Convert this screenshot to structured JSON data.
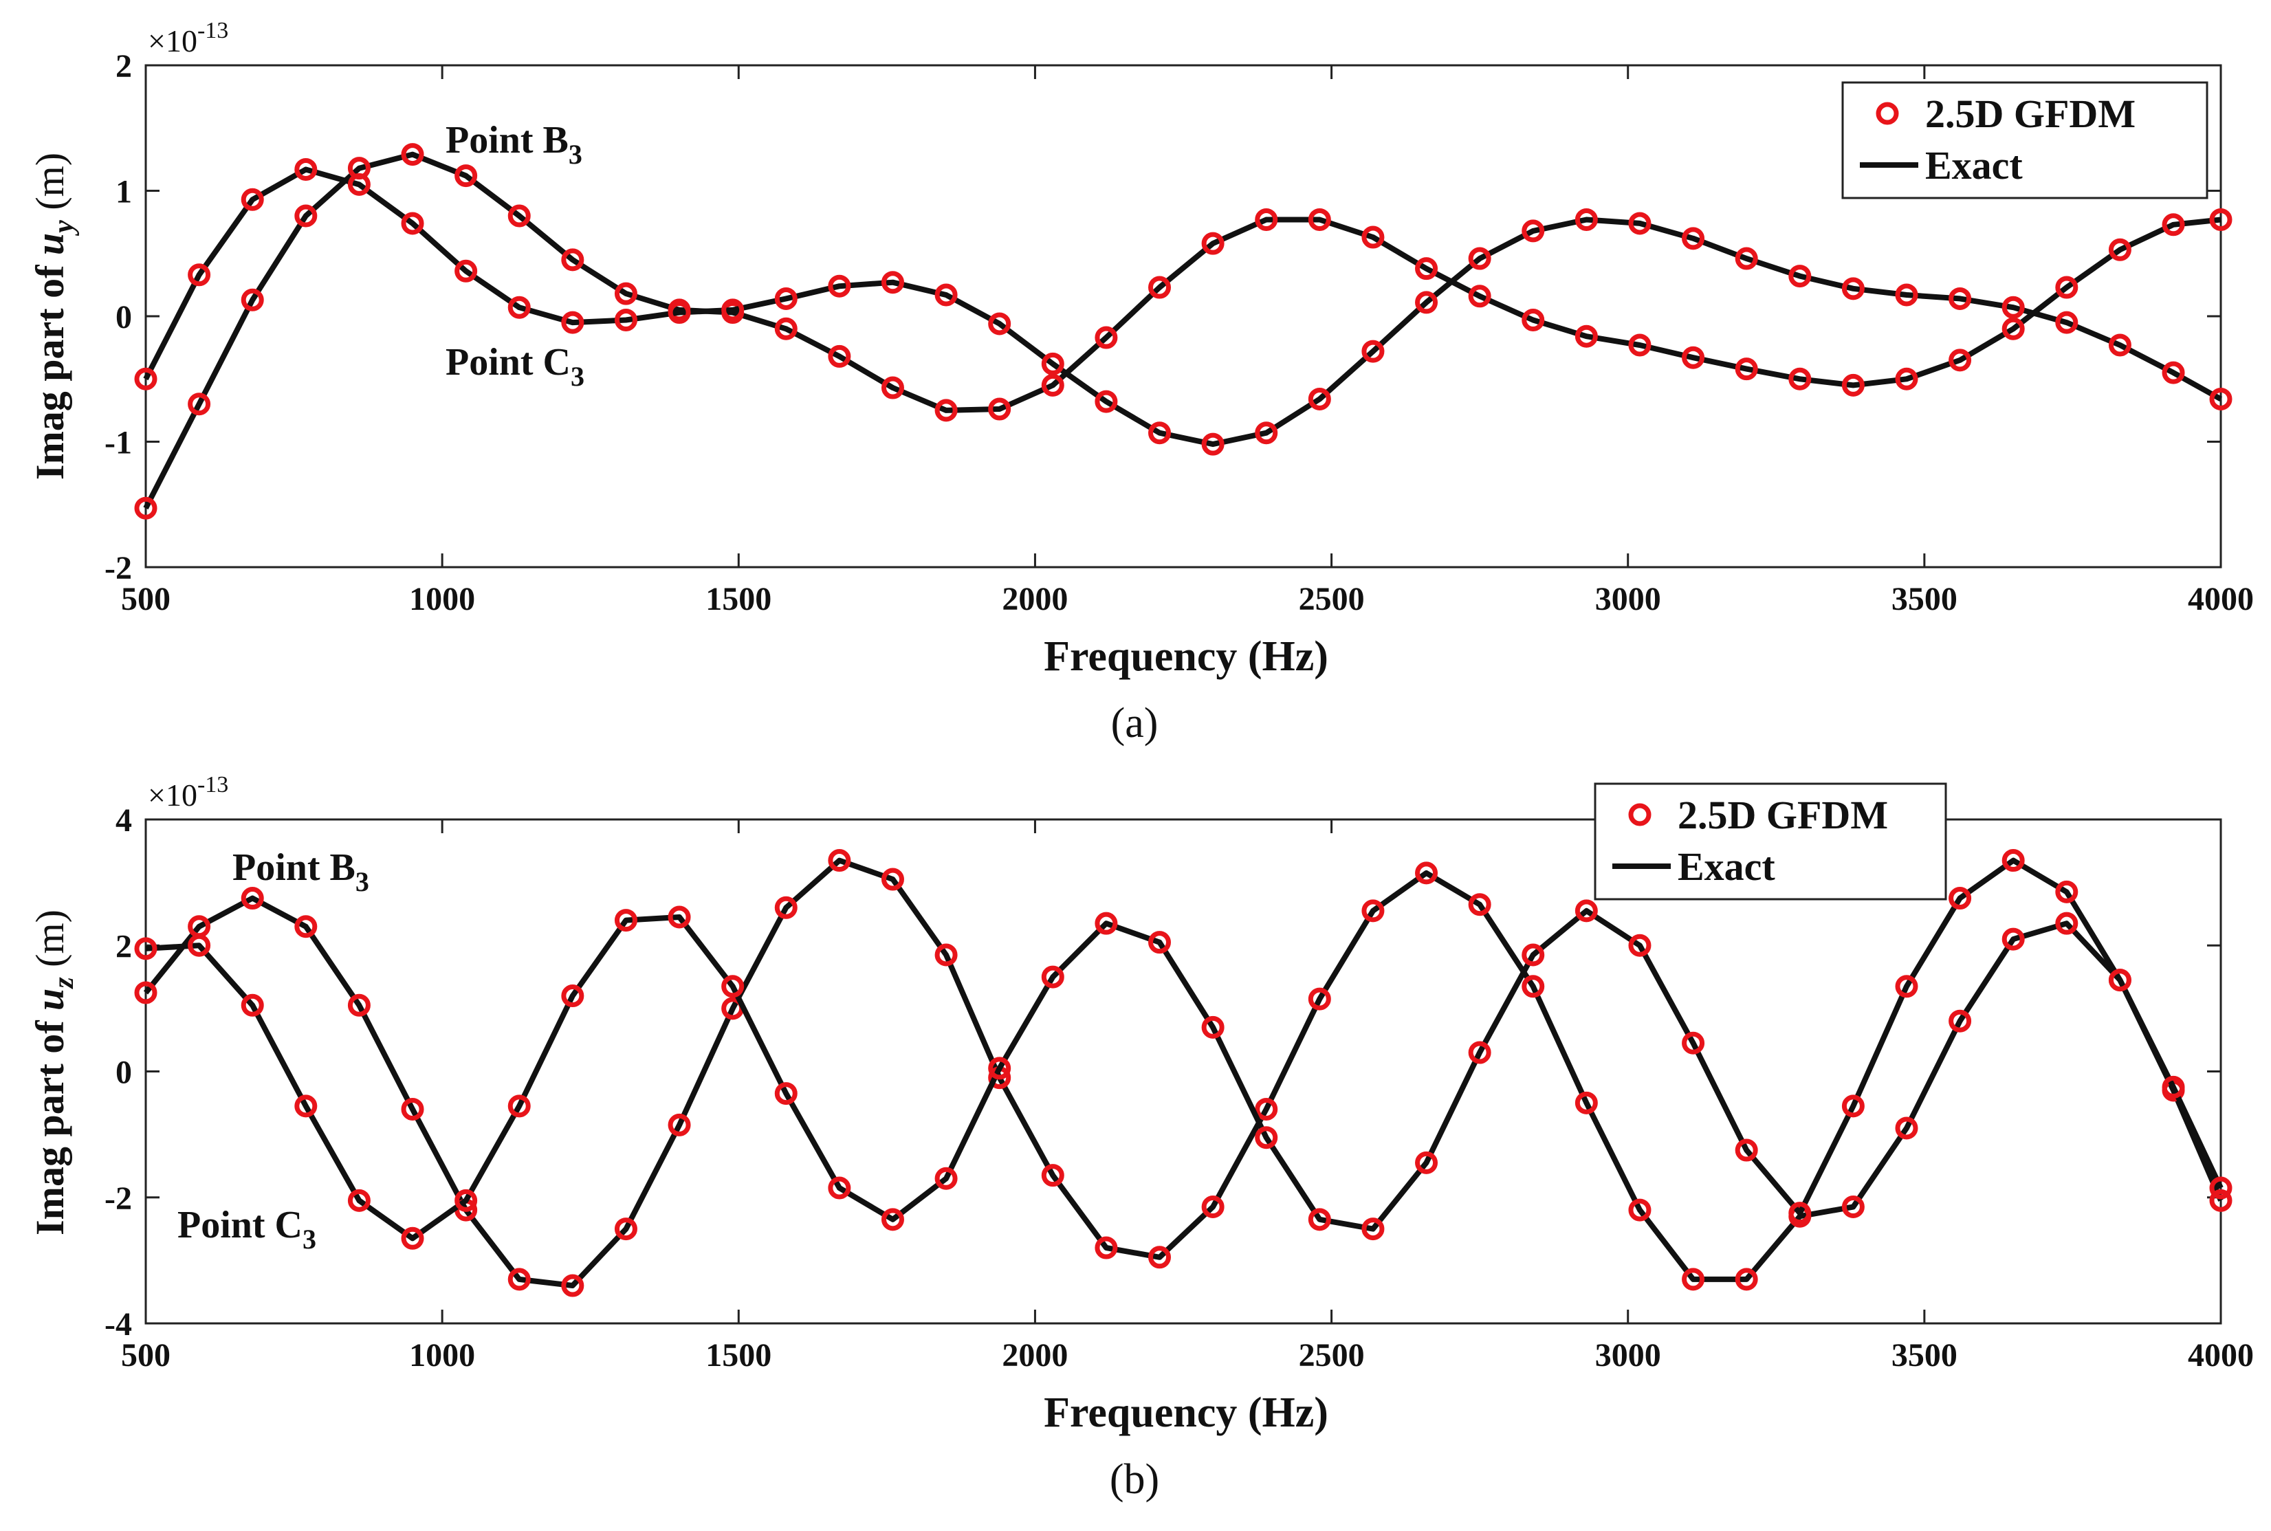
{
  "chart_data": [
    {
      "type": "line",
      "panel": "a",
      "caption": "(a)",
      "xlabel": "Frequency (Hz)",
      "ylabel_prefix": "Imag part of ",
      "ylabel_var": "u",
      "ylabel_sub": "y",
      "ylabel_unit": " (m)",
      "exponent_base": "×10",
      "exponent_power": "-13",
      "xlim": [
        500,
        4000
      ],
      "ylim": [
        -2,
        2
      ],
      "xticks": [
        "500",
        "1000",
        "1500",
        "2000",
        "2500",
        "3000",
        "3500",
        "4000"
      ],
      "yticks": [
        "-2",
        "-1",
        "0",
        "1",
        "2"
      ],
      "legend": {
        "position": "top-right",
        "entries": [
          "2.5D GFDM",
          "Exact"
        ]
      },
      "annotations": [
        {
          "text": "Point B",
          "sub": "3"
        },
        {
          "text": "Point C",
          "sub": "3"
        }
      ],
      "x": [
        500,
        590,
        680,
        770,
        860,
        950,
        1040,
        1130,
        1220,
        1310,
        1400,
        1490,
        1580,
        1670,
        1760,
        1850,
        1940,
        2030,
        2120,
        2210,
        2300,
        2390,
        2480,
        2570,
        2660,
        2750,
        2840,
        2930,
        3020,
        3110,
        3200,
        3290,
        3380,
        3470,
        3560,
        3650,
        3740,
        3830,
        3920,
        4000
      ],
      "series": [
        {
          "name": "Point B3",
          "values": [
            -1.53,
            -0.7,
            0.13,
            0.8,
            1.18,
            1.29,
            1.12,
            0.8,
            0.45,
            0.18,
            0.05,
            0.03,
            -0.1,
            -0.32,
            -0.57,
            -0.75,
            -0.74,
            -0.55,
            -0.17,
            0.23,
            0.58,
            0.77,
            0.77,
            0.63,
            0.38,
            0.16,
            -0.03,
            -0.16,
            -0.23,
            -0.33,
            -0.42,
            -0.5,
            -0.55,
            -0.5,
            -0.35,
            -0.1,
            0.23,
            0.53,
            0.73,
            0.77
          ]
        },
        {
          "name": "Point C3",
          "values": [
            -0.5,
            0.33,
            0.93,
            1.17,
            1.05,
            0.74,
            0.36,
            0.07,
            -0.05,
            -0.03,
            0.03,
            0.05,
            0.14,
            0.24,
            0.27,
            0.17,
            -0.06,
            -0.38,
            -0.68,
            -0.93,
            -1.02,
            -0.93,
            -0.66,
            -0.28,
            0.11,
            0.46,
            0.68,
            0.77,
            0.74,
            0.62,
            0.46,
            0.32,
            0.22,
            0.17,
            0.14,
            0.07,
            -0.05,
            -0.23,
            -0.45,
            -0.66
          ]
        }
      ]
    },
    {
      "type": "line",
      "panel": "b",
      "caption": "(b)",
      "xlabel": "Frequency (Hz)",
      "ylabel_prefix": "Imag part of ",
      "ylabel_var": "u",
      "ylabel_sub": "z",
      "ylabel_unit": " (m)",
      "exponent_base": "×10",
      "exponent_power": "-13",
      "xlim": [
        500,
        4000
      ],
      "ylim": [
        -4,
        4
      ],
      "xticks": [
        "500",
        "1000",
        "1500",
        "2000",
        "2500",
        "3000",
        "3500",
        "4000"
      ],
      "yticks": [
        "-4",
        "-2",
        "0",
        "2",
        "4"
      ],
      "legend": {
        "position": "top-center-right",
        "entries": [
          "2.5D GFDM",
          "Exact"
        ]
      },
      "annotations": [
        {
          "text": "Point B",
          "sub": "3"
        },
        {
          "text": "Point C",
          "sub": "3"
        }
      ],
      "x": [
        500,
        590,
        680,
        770,
        860,
        950,
        1040,
        1130,
        1220,
        1310,
        1400,
        1490,
        1580,
        1670,
        1760,
        1850,
        1940,
        2030,
        2120,
        2210,
        2300,
        2390,
        2480,
        2570,
        2660,
        2750,
        2840,
        2930,
        3020,
        3110,
        3200,
        3290,
        3380,
        3470,
        3560,
        3650,
        3740,
        3830,
        3920,
        4000
      ],
      "series": [
        {
          "name": "Point B3",
          "values": [
            1.25,
            2.3,
            2.75,
            2.3,
            1.05,
            -0.6,
            -2.2,
            -3.3,
            -3.4,
            -2.5,
            -0.85,
            1.0,
            2.6,
            3.35,
            3.05,
            1.85,
            -0.1,
            -1.65,
            -2.8,
            -2.95,
            -2.15,
            -0.6,
            1.15,
            2.55,
            3.15,
            2.65,
            1.35,
            -0.5,
            -2.2,
            -3.3,
            -3.3,
            -2.3,
            -2.15,
            -0.9,
            0.8,
            2.1,
            2.35,
            1.45,
            -0.3,
            -2.05
          ]
        },
        {
          "name": "Point C3",
          "values": [
            1.95,
            2.0,
            1.05,
            -0.55,
            -2.05,
            -2.65,
            -2.05,
            -0.55,
            1.2,
            2.4,
            2.45,
            1.35,
            -0.35,
            -1.85,
            -2.35,
            -1.7,
            0.05,
            1.5,
            2.35,
            2.05,
            0.7,
            -1.05,
            -2.35,
            -2.5,
            -1.45,
            0.3,
            1.85,
            2.55,
            2.0,
            0.45,
            -1.25,
            -2.25,
            -0.55,
            1.35,
            2.75,
            3.35,
            2.85,
            1.45,
            -0.25,
            -1.85
          ]
        }
      ]
    }
  ]
}
